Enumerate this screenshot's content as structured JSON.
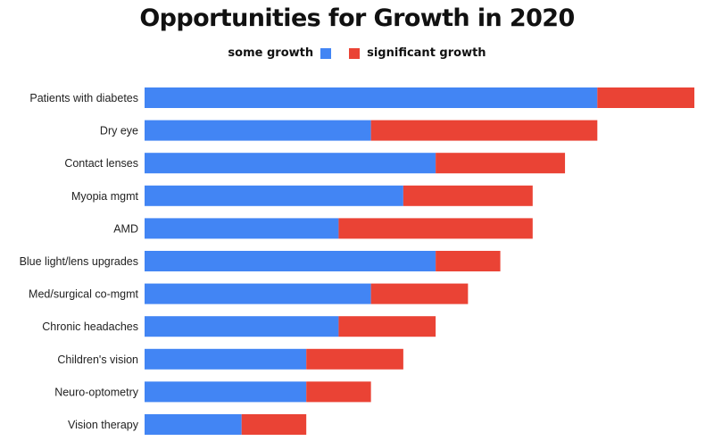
{
  "colors": {
    "some_growth": "#4285f4",
    "significant_growth": "#ea4335"
  },
  "chart_data": {
    "type": "bar",
    "orientation": "horizontal",
    "stacked": true,
    "title": "Opportunities for Growth in 2020",
    "xlabel": "",
    "ylabel": "",
    "legend_position": "top",
    "grid": false,
    "xlim": [
      0,
      85
    ],
    "categories": [
      "Patients with diabetes",
      "Dry eye",
      "Contact lenses",
      "Myopia mgmt",
      "AMD",
      "Blue light/lens upgrades",
      "Med/surgical co-mgmt",
      "Chronic headaches",
      "Children's vision",
      "Neuro-optometry",
      "Vision therapy"
    ],
    "series": [
      {
        "name": "some growth",
        "values": [
          70,
          35,
          45,
          40,
          30,
          45,
          35,
          30,
          25,
          25,
          15
        ]
      },
      {
        "name": "significant growth",
        "values": [
          15,
          35,
          20,
          20,
          30,
          10,
          15,
          15,
          15,
          10,
          10
        ]
      }
    ]
  }
}
